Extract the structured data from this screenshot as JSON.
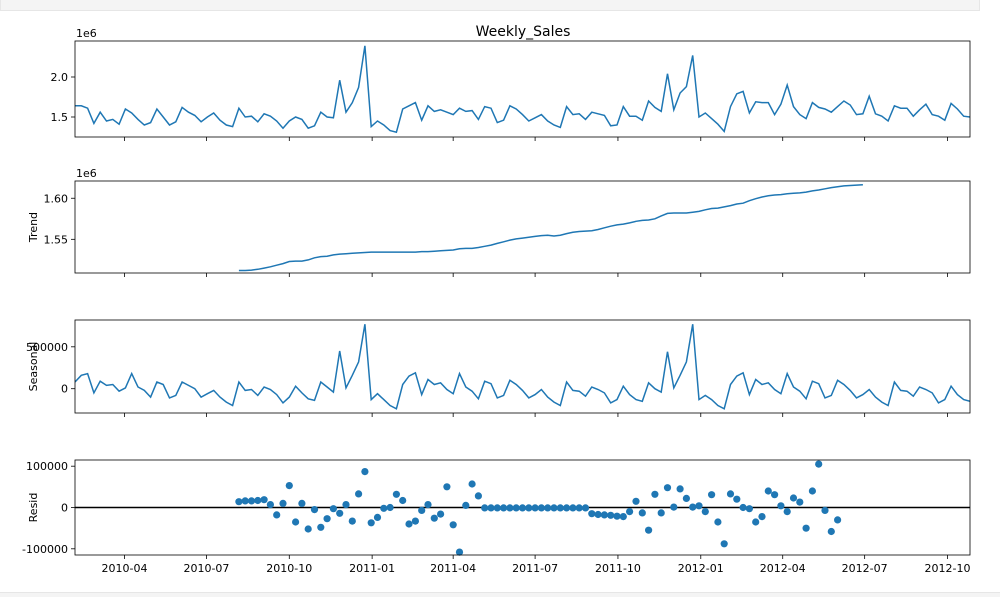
{
  "figure_title": "Weekly_Sales",
  "x_ticks": [
    "2010-04",
    "2010-07",
    "2010-10",
    "2011-01",
    "2011-04",
    "2011-07",
    "2011-10",
    "2012-01",
    "2012-04",
    "2012-07",
    "2012-10"
  ],
  "chart_data": [
    {
      "type": "line",
      "title": "Weekly_Sales",
      "xlabel": "",
      "ylabel": "",
      "y_offset_label": "1e6",
      "x_range": [
        "2010-02-05",
        "2012-10-26"
      ],
      "ylim": [
        1250000,
        2450000
      ],
      "y_ticks": [
        1.5,
        2.0
      ],
      "color": "#1f77b4",
      "series": [
        {
          "values": [
            1640000,
            1640000,
            1610000,
            1420000,
            1560000,
            1450000,
            1470000,
            1410000,
            1600000,
            1550000,
            1470000,
            1400000,
            1430000,
            1600000,
            1500000,
            1400000,
            1440000,
            1620000,
            1560000,
            1520000,
            1440000,
            1500000,
            1550000,
            1460000,
            1400000,
            1380000,
            1610000,
            1500000,
            1510000,
            1440000,
            1540000,
            1510000,
            1450000,
            1360000,
            1450000,
            1500000,
            1470000,
            1360000,
            1390000,
            1560000,
            1500000,
            1490000,
            1960000,
            1560000,
            1680000,
            1870000,
            2390000,
            1380000,
            1450000,
            1400000,
            1330000,
            1310000,
            1600000,
            1640000,
            1680000,
            1460000,
            1640000,
            1570000,
            1590000,
            1560000,
            1530000,
            1610000,
            1570000,
            1580000,
            1470000,
            1630000,
            1610000,
            1430000,
            1460000,
            1640000,
            1600000,
            1530000,
            1450000,
            1490000,
            1530000,
            1450000,
            1400000,
            1370000,
            1630000,
            1530000,
            1540000,
            1470000,
            1560000,
            1540000,
            1520000,
            1390000,
            1400000,
            1630000,
            1510000,
            1510000,
            1460000,
            1700000,
            1620000,
            1570000,
            2040000,
            1590000,
            1800000,
            1880000,
            2270000,
            1500000,
            1550000,
            1480000,
            1410000,
            1320000,
            1630000,
            1790000,
            1820000,
            1550000,
            1690000,
            1680000,
            1680000,
            1530000,
            1660000,
            1900000,
            1630000,
            1530000,
            1480000,
            1680000,
            1620000,
            1600000,
            1560000,
            1630000,
            1700000,
            1650000,
            1530000,
            1540000,
            1760000,
            1540000,
            1510000,
            1450000,
            1640000,
            1610000,
            1610000,
            1510000,
            1590000,
            1660000,
            1530000,
            1510000,
            1460000,
            1670000,
            1600000,
            1510000,
            1500000
          ]
        }
      ]
    },
    {
      "type": "line",
      "title": "",
      "xlabel": "",
      "ylabel": "Trend",
      "y_offset_label": "1e6",
      "x_range": [
        "2010-02-05",
        "2012-10-26"
      ],
      "ylim": [
        1509000,
        1621000
      ],
      "y_ticks": [
        1.55,
        1.6
      ],
      "color": "#1f77b4",
      "series": [
        {
          "start_week": 26,
          "values": [
            1512000,
            1512000,
            1512500,
            1513500,
            1515000,
            1516500,
            1518500,
            1520500,
            1523000,
            1523500,
            1523500,
            1525000,
            1527500,
            1529000,
            1529500,
            1531000,
            1532000,
            1532500,
            1533000,
            1533500,
            1534000,
            1534500,
            1534500,
            1534500,
            1534500,
            1534500,
            1534500,
            1534500,
            1534500,
            1535000,
            1535000,
            1535500,
            1536000,
            1536500,
            1537000,
            1538500,
            1539000,
            1539000,
            1540000,
            1541500,
            1543000,
            1545000,
            1547000,
            1549000,
            1550500,
            1551500,
            1552500,
            1553500,
            1554500,
            1555000,
            1554000,
            1555000,
            1557000,
            1558500,
            1559500,
            1560000,
            1560500,
            1562000,
            1564000,
            1566000,
            1567500,
            1568500,
            1570000,
            1572000,
            1573000,
            1573500,
            1575000,
            1578500,
            1581500,
            1582000,
            1582000,
            1582000,
            1583000,
            1584000,
            1586000,
            1587500,
            1588000,
            1589500,
            1591000,
            1593000,
            1594000,
            1597000,
            1599500,
            1601500,
            1603000,
            1604000,
            1604500,
            1605500,
            1606000,
            1606500,
            1607500,
            1609000,
            1610000,
            1611500,
            1613000,
            1614000,
            1615000,
            1615500,
            1616000,
            1616500
          ]
        }
      ]
    },
    {
      "type": "line",
      "title": "",
      "xlabel": "",
      "ylabel": "Seasonal",
      "x_range": [
        "2010-02-05",
        "2012-10-26"
      ],
      "ylim": [
        -290000,
        820000
      ],
      "y_ticks": [
        0,
        500000
      ],
      "color": "#1f77b4",
      "series": [
        {
          "values": [
            80000,
            160000,
            180000,
            -50000,
            90000,
            40000,
            50000,
            -30000,
            10000,
            180000,
            20000,
            -20000,
            -100000,
            80000,
            50000,
            -110000,
            -80000,
            80000,
            40000,
            0,
            -100000,
            -60000,
            -20000,
            -100000,
            -160000,
            -200000,
            80000,
            -20000,
            -10000,
            -80000,
            20000,
            -10000,
            -70000,
            -170000,
            -100000,
            30000,
            -50000,
            -120000,
            -140000,
            80000,
            20000,
            -40000,
            450000,
            10000,
            160000,
            320000,
            770000,
            -130000,
            -60000,
            -130000,
            -200000,
            -240000,
            50000,
            150000,
            190000,
            -70000,
            110000,
            50000,
            70000,
            -10000,
            -60000,
            180000,
            20000,
            -30000,
            -120000,
            90000,
            60000,
            -110000,
            -80000,
            100000,
            50000,
            -20000,
            -110000,
            -70000,
            -10000,
            -100000,
            -160000,
            -200000,
            80000,
            -20000,
            -30000,
            -90000,
            20000,
            -10000,
            -50000,
            -170000,
            -130000,
            30000,
            -70000,
            -130000,
            -150000,
            70000,
            0,
            -40000,
            440000,
            10000,
            160000,
            320000,
            770000,
            -130000,
            -80000,
            -130000,
            -200000,
            -240000,
            50000,
            150000,
            190000,
            -70000,
            110000,
            50000,
            70000,
            -10000,
            -60000,
            180000,
            20000,
            -30000,
            -120000,
            90000,
            60000,
            -110000,
            -80000,
            100000,
            50000,
            -20000,
            -110000,
            -70000,
            -10000,
            -100000,
            -160000,
            -200000,
            80000,
            -20000,
            -30000,
            -90000,
            20000,
            -10000,
            -50000,
            -170000,
            -130000,
            30000,
            -70000,
            -130000,
            -150000
          ]
        }
      ]
    },
    {
      "type": "scatter",
      "title": "",
      "xlabel": "",
      "ylabel": "Resid",
      "x_range": [
        "2010-02-05",
        "2012-10-26"
      ],
      "ylim": [
        -115000,
        115000
      ],
      "y_ticks": [
        -100000,
        0,
        100000
      ],
      "reference_line": 0,
      "color": "#1f77b4",
      "series": [
        {
          "start_week": 26,
          "values": [
            14000,
            16000,
            16000,
            17000,
            19000,
            7000,
            -18000,
            10000,
            53000,
            -35000,
            10000,
            -52000,
            -5000,
            -48000,
            -27000,
            -3000,
            -14000,
            7000,
            -33000,
            33000,
            87000,
            -37000,
            -24000,
            -2000,
            0,
            32000,
            17000,
            -40000,
            -33000,
            -7000,
            7000,
            -26000,
            -16000,
            50000,
            -42000,
            -108000,
            5000,
            57000,
            28000,
            -1000,
            -1000,
            -1000,
            -1000,
            -1000,
            -1000,
            -1000,
            -1000,
            -1000,
            -1000,
            -1000,
            -1000,
            -1000,
            -1000,
            -1000,
            -1000,
            -1000,
            -15000,
            -17000,
            -18000,
            -19000,
            -21000,
            -22000,
            -10000,
            15000,
            -13000,
            -55000,
            32000,
            -13000,
            48000,
            1000,
            45000,
            22000,
            1000,
            4000,
            -10000,
            31000,
            -35000,
            -88000,
            33000,
            20000,
            0,
            -3000,
            -35000,
            -22000,
            40000,
            31000,
            4000,
            -10000,
            23000,
            13000,
            -50000,
            40000,
            105000,
            -7000,
            -58000,
            -30000
          ]
        }
      ]
    }
  ]
}
